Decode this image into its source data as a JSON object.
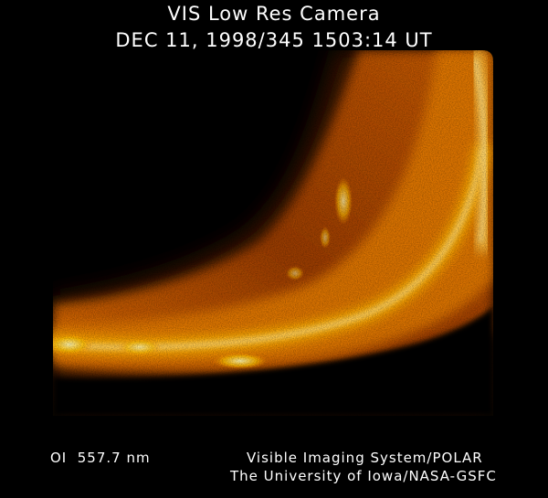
{
  "header": {
    "title": "VIS Low Res Camera",
    "timestamp": "DEC 11, 1998/345 1503:14 UT"
  },
  "image": {
    "subject": "auroral-oval-emission-image",
    "colors": {
      "background": "#000000",
      "dim": "#3a1600",
      "mid": "#c55a00",
      "bright": "#ffb000",
      "peak": "#fff3a0"
    }
  },
  "footer": {
    "wavelength": "OI  557.7 nm",
    "credit_line1": "Visible Imaging System/POLAR",
    "credit_line2": "The University of Iowa/NASA-GSFC"
  }
}
